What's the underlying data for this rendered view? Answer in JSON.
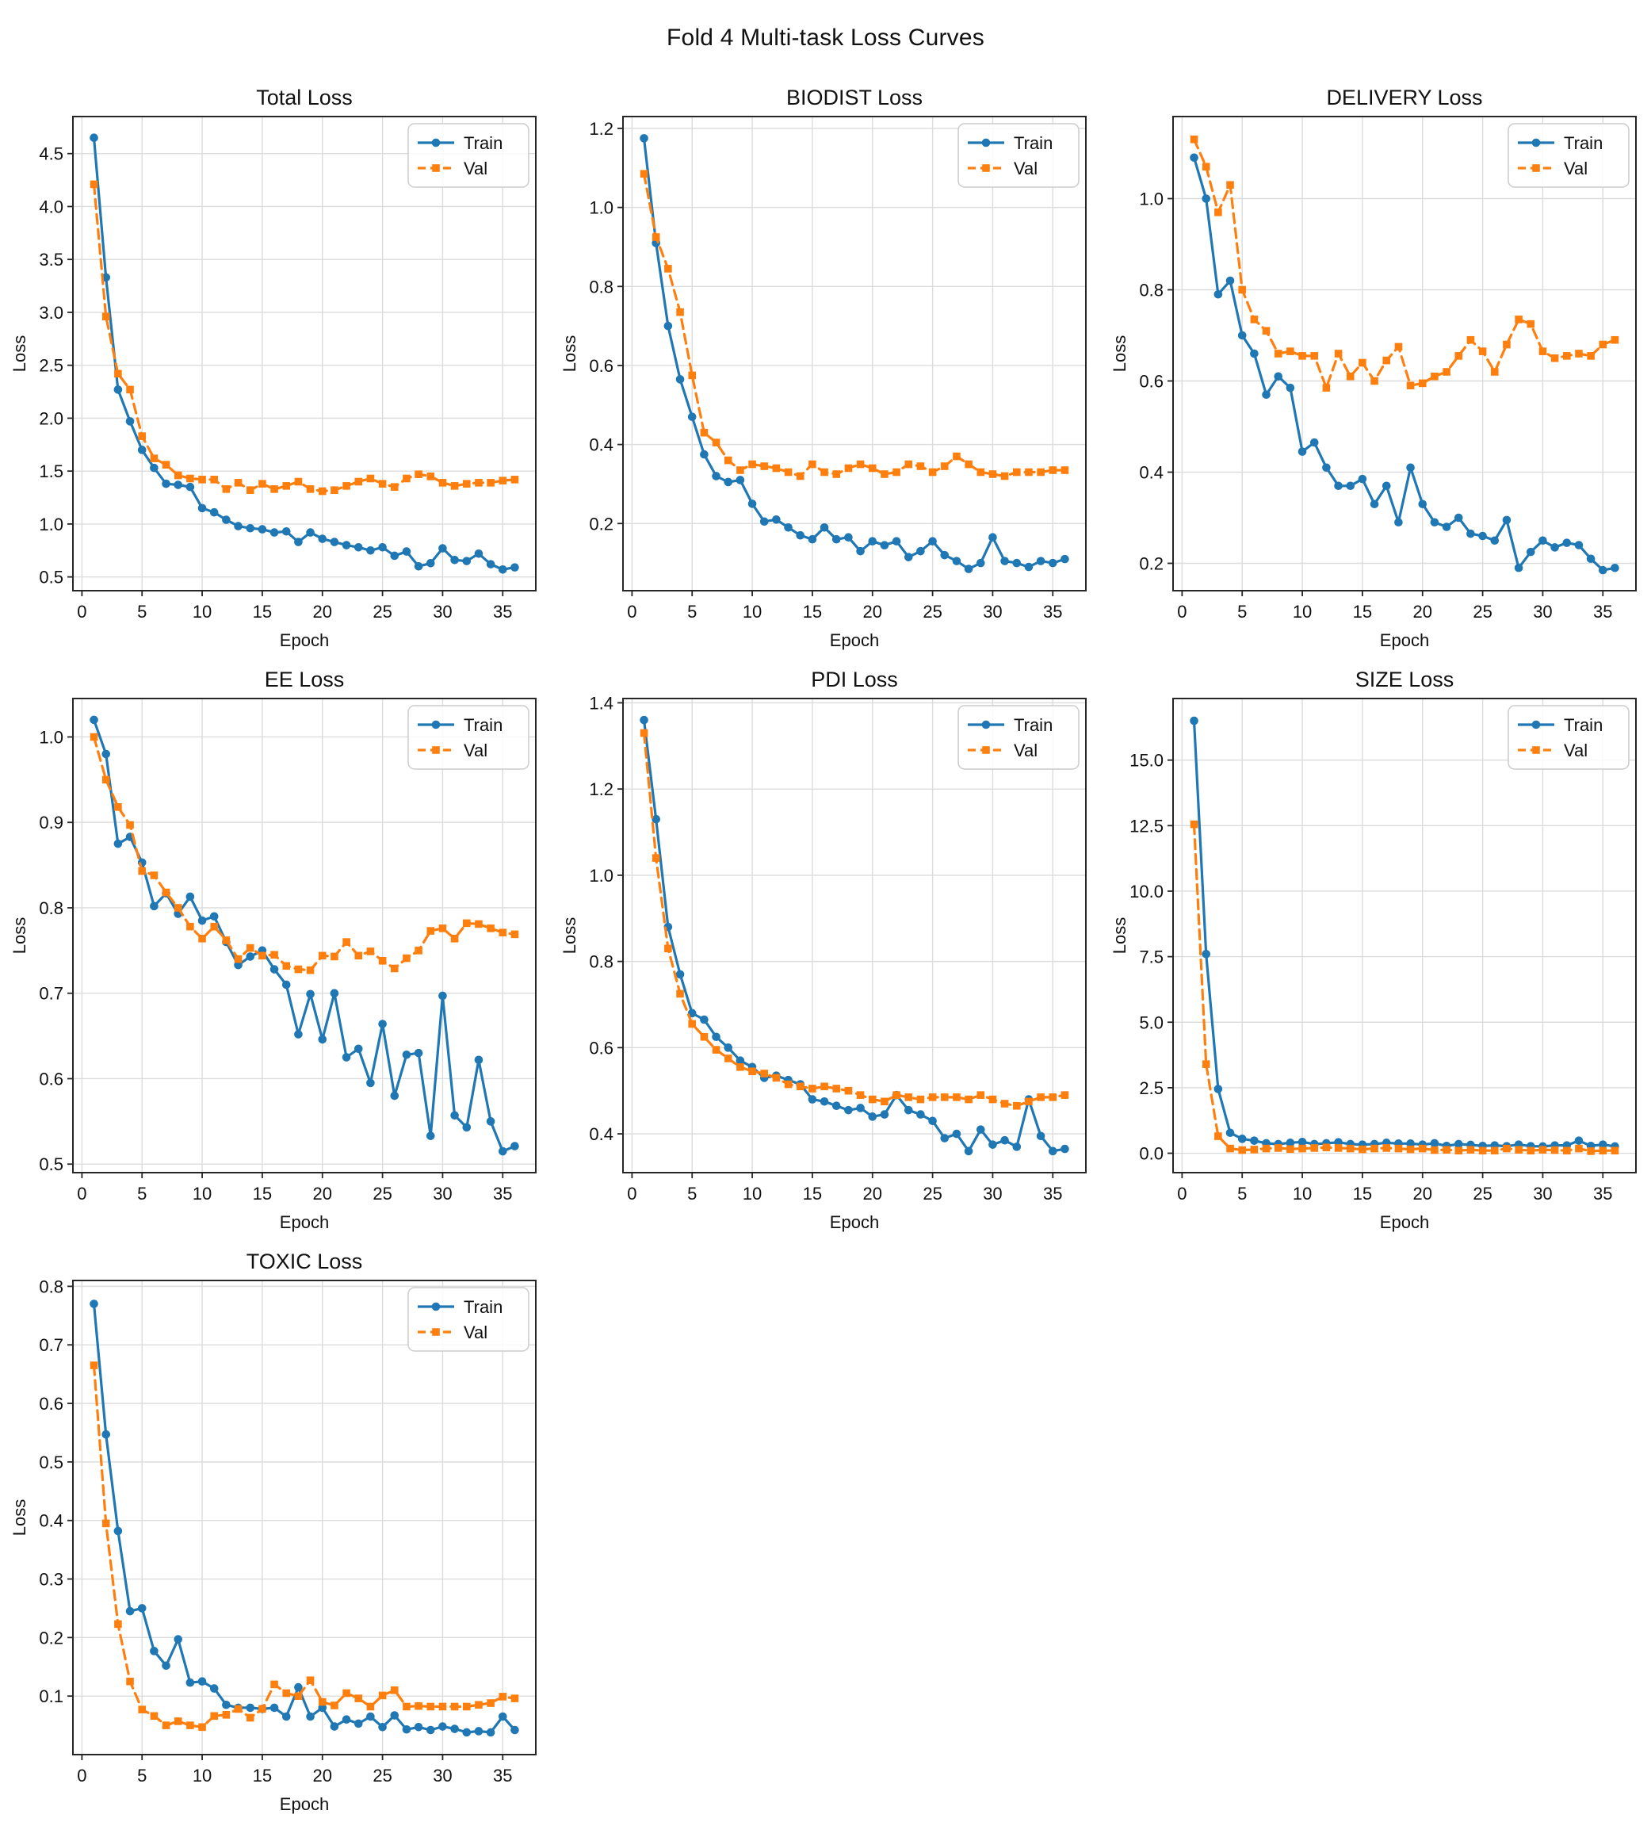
{
  "page_title": "Fold 4 Multi-task Loss Curves",
  "colors": {
    "train": "#1f77b4",
    "val": "#ff7f0e",
    "grid": "#dcdcdc",
    "spine": "#262626",
    "text": "#111111",
    "plot_bg": "#ffffff",
    "legend_border": "#cccccc",
    "legend_bg": "#ffffff"
  },
  "legend": {
    "train_label": "Train",
    "val_label": "Val",
    "position": "upper right"
  },
  "epochs": [
    1,
    2,
    3,
    4,
    5,
    6,
    7,
    8,
    9,
    10,
    11,
    12,
    13,
    14,
    15,
    16,
    17,
    18,
    19,
    20,
    21,
    22,
    23,
    24,
    25,
    26,
    27,
    28,
    29,
    30,
    31,
    32,
    33,
    34,
    35,
    36
  ],
  "chart_data": [
    {
      "type": "line",
      "title": "Total Loss",
      "xlabel": "Epoch",
      "ylabel": "Loss",
      "xlim": [
        -0.75,
        37.75
      ],
      "xticks": [
        0,
        5,
        10,
        15,
        20,
        25,
        30,
        35
      ],
      "ylim": [
        0.37,
        4.85
      ],
      "yticks": [
        0.5,
        1.0,
        1.5,
        2.0,
        2.5,
        3.0,
        3.5,
        4.0,
        4.5
      ],
      "grid": true,
      "legend_position": "upper right",
      "series": [
        {
          "name": "Train",
          "color": "#1f77b4",
          "style": "solid",
          "marker": "circle",
          "values": [
            4.65,
            3.33,
            2.27,
            1.97,
            1.7,
            1.53,
            1.38,
            1.37,
            1.35,
            1.15,
            1.11,
            1.04,
            0.98,
            0.96,
            0.95,
            0.92,
            0.93,
            0.83,
            0.92,
            0.86,
            0.83,
            0.8,
            0.78,
            0.75,
            0.78,
            0.7,
            0.74,
            0.6,
            0.63,
            0.77,
            0.66,
            0.65,
            0.72,
            0.62,
            0.57,
            0.59
          ]
        },
        {
          "name": "Val",
          "color": "#ff7f0e",
          "style": "dashed",
          "marker": "square",
          "values": [
            4.21,
            2.96,
            2.42,
            2.27,
            1.83,
            1.62,
            1.56,
            1.46,
            1.43,
            1.42,
            1.42,
            1.33,
            1.39,
            1.32,
            1.38,
            1.33,
            1.36,
            1.4,
            1.33,
            1.31,
            1.32,
            1.36,
            1.4,
            1.43,
            1.38,
            1.35,
            1.43,
            1.47,
            1.45,
            1.39,
            1.36,
            1.38,
            1.39,
            1.39,
            1.41,
            1.42
          ]
        }
      ]
    },
    {
      "type": "line",
      "title": "BIODIST Loss",
      "xlabel": "Epoch",
      "ylabel": "Loss",
      "xlim": [
        -0.75,
        37.75
      ],
      "xticks": [
        0,
        5,
        10,
        15,
        20,
        25,
        30,
        35
      ],
      "ylim": [
        0.03,
        1.23
      ],
      "yticks": [
        0.2,
        0.4,
        0.6,
        0.8,
        1.0,
        1.2
      ],
      "grid": true,
      "legend_position": "upper right",
      "series": [
        {
          "name": "Train",
          "color": "#1f77b4",
          "style": "solid",
          "marker": "circle",
          "values": [
            1.175,
            0.91,
            0.7,
            0.565,
            0.47,
            0.375,
            0.32,
            0.305,
            0.31,
            0.25,
            0.205,
            0.21,
            0.19,
            0.17,
            0.16,
            0.19,
            0.16,
            0.165,
            0.13,
            0.155,
            0.145,
            0.155,
            0.115,
            0.13,
            0.155,
            0.12,
            0.105,
            0.085,
            0.1,
            0.165,
            0.105,
            0.1,
            0.09,
            0.105,
            0.1,
            0.11
          ]
        },
        {
          "name": "Val",
          "color": "#ff7f0e",
          "style": "dashed",
          "marker": "square",
          "values": [
            1.085,
            0.925,
            0.845,
            0.735,
            0.575,
            0.43,
            0.405,
            0.36,
            0.335,
            0.35,
            0.345,
            0.34,
            0.33,
            0.32,
            0.35,
            0.33,
            0.325,
            0.34,
            0.35,
            0.34,
            0.325,
            0.33,
            0.35,
            0.345,
            0.33,
            0.345,
            0.37,
            0.35,
            0.33,
            0.325,
            0.32,
            0.33,
            0.33,
            0.33,
            0.335,
            0.335
          ]
        }
      ]
    },
    {
      "type": "line",
      "title": "DELIVERY Loss",
      "xlabel": "Epoch",
      "ylabel": "Loss",
      "xlim": [
        -0.75,
        37.75
      ],
      "xticks": [
        0,
        5,
        10,
        15,
        20,
        25,
        30,
        35
      ],
      "ylim": [
        0.14,
        1.18
      ],
      "yticks": [
        0.2,
        0.4,
        0.6,
        0.8,
        1.0
      ],
      "grid": true,
      "legend_position": "upper right",
      "series": [
        {
          "name": "Train",
          "color": "#1f77b4",
          "style": "solid",
          "marker": "circle",
          "values": [
            1.09,
            1.0,
            0.79,
            0.82,
            0.7,
            0.66,
            0.57,
            0.61,
            0.585,
            0.445,
            0.465,
            0.41,
            0.37,
            0.37,
            0.385,
            0.33,
            0.37,
            0.29,
            0.41,
            0.33,
            0.29,
            0.28,
            0.3,
            0.265,
            0.26,
            0.25,
            0.295,
            0.19,
            0.225,
            0.25,
            0.235,
            0.245,
            0.24,
            0.21,
            0.185,
            0.19
          ]
        },
        {
          "name": "Val",
          "color": "#ff7f0e",
          "style": "dashed",
          "marker": "square",
          "values": [
            1.13,
            1.07,
            0.97,
            1.03,
            0.8,
            0.735,
            0.71,
            0.66,
            0.665,
            0.655,
            0.655,
            0.585,
            0.66,
            0.61,
            0.64,
            0.6,
            0.645,
            0.675,
            0.59,
            0.595,
            0.61,
            0.62,
            0.655,
            0.69,
            0.665,
            0.62,
            0.68,
            0.735,
            0.725,
            0.665,
            0.65,
            0.655,
            0.66,
            0.655,
            0.68,
            0.69
          ]
        }
      ]
    },
    {
      "type": "line",
      "title": "EE Loss",
      "xlabel": "Epoch",
      "ylabel": "Loss",
      "xlim": [
        -0.75,
        37.75
      ],
      "xticks": [
        0,
        5,
        10,
        15,
        20,
        25,
        30,
        35
      ],
      "ylim": [
        0.49,
        1.045
      ],
      "yticks": [
        0.5,
        0.6,
        0.7,
        0.8,
        0.9,
        1.0
      ],
      "grid": true,
      "legend_position": "upper right",
      "series": [
        {
          "name": "Train",
          "color": "#1f77b4",
          "style": "solid",
          "marker": "circle",
          "values": [
            1.02,
            0.98,
            0.875,
            0.883,
            0.853,
            0.802,
            0.817,
            0.793,
            0.813,
            0.785,
            0.79,
            0.76,
            0.733,
            0.743,
            0.75,
            0.728,
            0.71,
            0.652,
            0.699,
            0.646,
            0.7,
            0.625,
            0.635,
            0.595,
            0.664,
            0.58,
            0.628,
            0.63,
            0.533,
            0.697,
            0.557,
            0.543,
            0.622,
            0.55,
            0.515,
            0.521
          ]
        },
        {
          "name": "Val",
          "color": "#ff7f0e",
          "style": "dashed",
          "marker": "square",
          "values": [
            1.0,
            0.95,
            0.918,
            0.897,
            0.843,
            0.838,
            0.818,
            0.8,
            0.778,
            0.764,
            0.778,
            0.762,
            0.74,
            0.753,
            0.744,
            0.745,
            0.732,
            0.728,
            0.727,
            0.744,
            0.743,
            0.76,
            0.744,
            0.749,
            0.738,
            0.729,
            0.741,
            0.75,
            0.773,
            0.776,
            0.764,
            0.782,
            0.781,
            0.776,
            0.771,
            0.769
          ]
        }
      ]
    },
    {
      "type": "line",
      "title": "PDI Loss",
      "xlabel": "Epoch",
      "ylabel": "Loss",
      "xlim": [
        -0.75,
        37.75
      ],
      "xticks": [
        0,
        5,
        10,
        15,
        20,
        25,
        30,
        35
      ],
      "ylim": [
        0.31,
        1.41
      ],
      "yticks": [
        0.4,
        0.6,
        0.8,
        1.0,
        1.2,
        1.4
      ],
      "grid": true,
      "legend_position": "upper right",
      "series": [
        {
          "name": "Train",
          "color": "#1f77b4",
          "style": "solid",
          "marker": "circle",
          "values": [
            1.36,
            1.13,
            0.88,
            0.77,
            0.68,
            0.665,
            0.625,
            0.6,
            0.57,
            0.555,
            0.53,
            0.535,
            0.525,
            0.515,
            0.48,
            0.475,
            0.465,
            0.455,
            0.46,
            0.44,
            0.445,
            0.49,
            0.455,
            0.445,
            0.43,
            0.39,
            0.4,
            0.36,
            0.41,
            0.375,
            0.385,
            0.37,
            0.48,
            0.395,
            0.36,
            0.365
          ]
        },
        {
          "name": "Val",
          "color": "#ff7f0e",
          "style": "dashed",
          "marker": "square",
          "values": [
            1.33,
            1.04,
            0.83,
            0.725,
            0.655,
            0.625,
            0.595,
            0.575,
            0.555,
            0.545,
            0.54,
            0.53,
            0.515,
            0.51,
            0.505,
            0.51,
            0.505,
            0.5,
            0.49,
            0.48,
            0.475,
            0.49,
            0.485,
            0.48,
            0.485,
            0.485,
            0.485,
            0.48,
            0.49,
            0.48,
            0.47,
            0.465,
            0.475,
            0.485,
            0.485,
            0.49
          ]
        }
      ]
    },
    {
      "type": "line",
      "title": "SIZE Loss",
      "xlabel": "Epoch",
      "ylabel": "Loss",
      "xlim": [
        -0.75,
        37.75
      ],
      "xticks": [
        0,
        5,
        10,
        15,
        20,
        25,
        30,
        35
      ],
      "ylim": [
        -0.74,
        17.35
      ],
      "yticks": [
        0.0,
        2.5,
        5.0,
        7.5,
        10.0,
        12.5,
        15.0
      ],
      "grid": true,
      "legend_position": "upper right",
      "series": [
        {
          "name": "Train",
          "color": "#1f77b4",
          "style": "solid",
          "marker": "circle",
          "values": [
            16.5,
            7.6,
            2.45,
            0.78,
            0.55,
            0.48,
            0.38,
            0.35,
            0.4,
            0.43,
            0.35,
            0.38,
            0.42,
            0.35,
            0.33,
            0.35,
            0.4,
            0.37,
            0.37,
            0.33,
            0.38,
            0.28,
            0.35,
            0.32,
            0.28,
            0.3,
            0.27,
            0.33,
            0.27,
            0.26,
            0.3,
            0.3,
            0.48,
            0.28,
            0.33,
            0.26
          ]
        },
        {
          "name": "Val",
          "color": "#ff7f0e",
          "style": "dashed",
          "marker": "square",
          "values": [
            12.55,
            3.4,
            0.65,
            0.18,
            0.12,
            0.14,
            0.18,
            0.2,
            0.16,
            0.18,
            0.2,
            0.22,
            0.2,
            0.18,
            0.15,
            0.18,
            0.2,
            0.18,
            0.15,
            0.18,
            0.12,
            0.13,
            0.1,
            0.13,
            0.1,
            0.1,
            0.18,
            0.13,
            0.1,
            0.13,
            0.12,
            0.1,
            0.18,
            0.08,
            0.1,
            0.1
          ]
        }
      ]
    },
    {
      "type": "line",
      "title": "TOXIC Loss",
      "xlabel": "Epoch",
      "ylabel": "Loss",
      "xlim": [
        -0.75,
        37.75
      ],
      "xticks": [
        0,
        5,
        10,
        15,
        20,
        25,
        30,
        35
      ],
      "ylim": [
        0.0,
        0.81
      ],
      "yticks": [
        0.1,
        0.2,
        0.3,
        0.4,
        0.5,
        0.6,
        0.7,
        0.8
      ],
      "grid": true,
      "legend_position": "upper right",
      "series": [
        {
          "name": "Train",
          "color": "#1f77b4",
          "style": "solid",
          "marker": "circle",
          "values": [
            0.77,
            0.547,
            0.382,
            0.245,
            0.25,
            0.177,
            0.152,
            0.197,
            0.123,
            0.125,
            0.113,
            0.085,
            0.08,
            0.08,
            0.078,
            0.08,
            0.065,
            0.115,
            0.065,
            0.08,
            0.048,
            0.06,
            0.053,
            0.065,
            0.047,
            0.067,
            0.043,
            0.047,
            0.042,
            0.048,
            0.044,
            0.038,
            0.04,
            0.038,
            0.065,
            0.042
          ]
        },
        {
          "name": "Val",
          "color": "#ff7f0e",
          "style": "dashed",
          "marker": "square",
          "values": [
            0.665,
            0.395,
            0.223,
            0.125,
            0.077,
            0.066,
            0.05,
            0.057,
            0.05,
            0.047,
            0.066,
            0.068,
            0.078,
            0.063,
            0.078,
            0.12,
            0.105,
            0.1,
            0.127,
            0.09,
            0.084,
            0.105,
            0.096,
            0.082,
            0.101,
            0.11,
            0.082,
            0.083,
            0.082,
            0.082,
            0.082,
            0.082,
            0.085,
            0.088,
            0.099,
            0.096
          ]
        }
      ]
    }
  ]
}
